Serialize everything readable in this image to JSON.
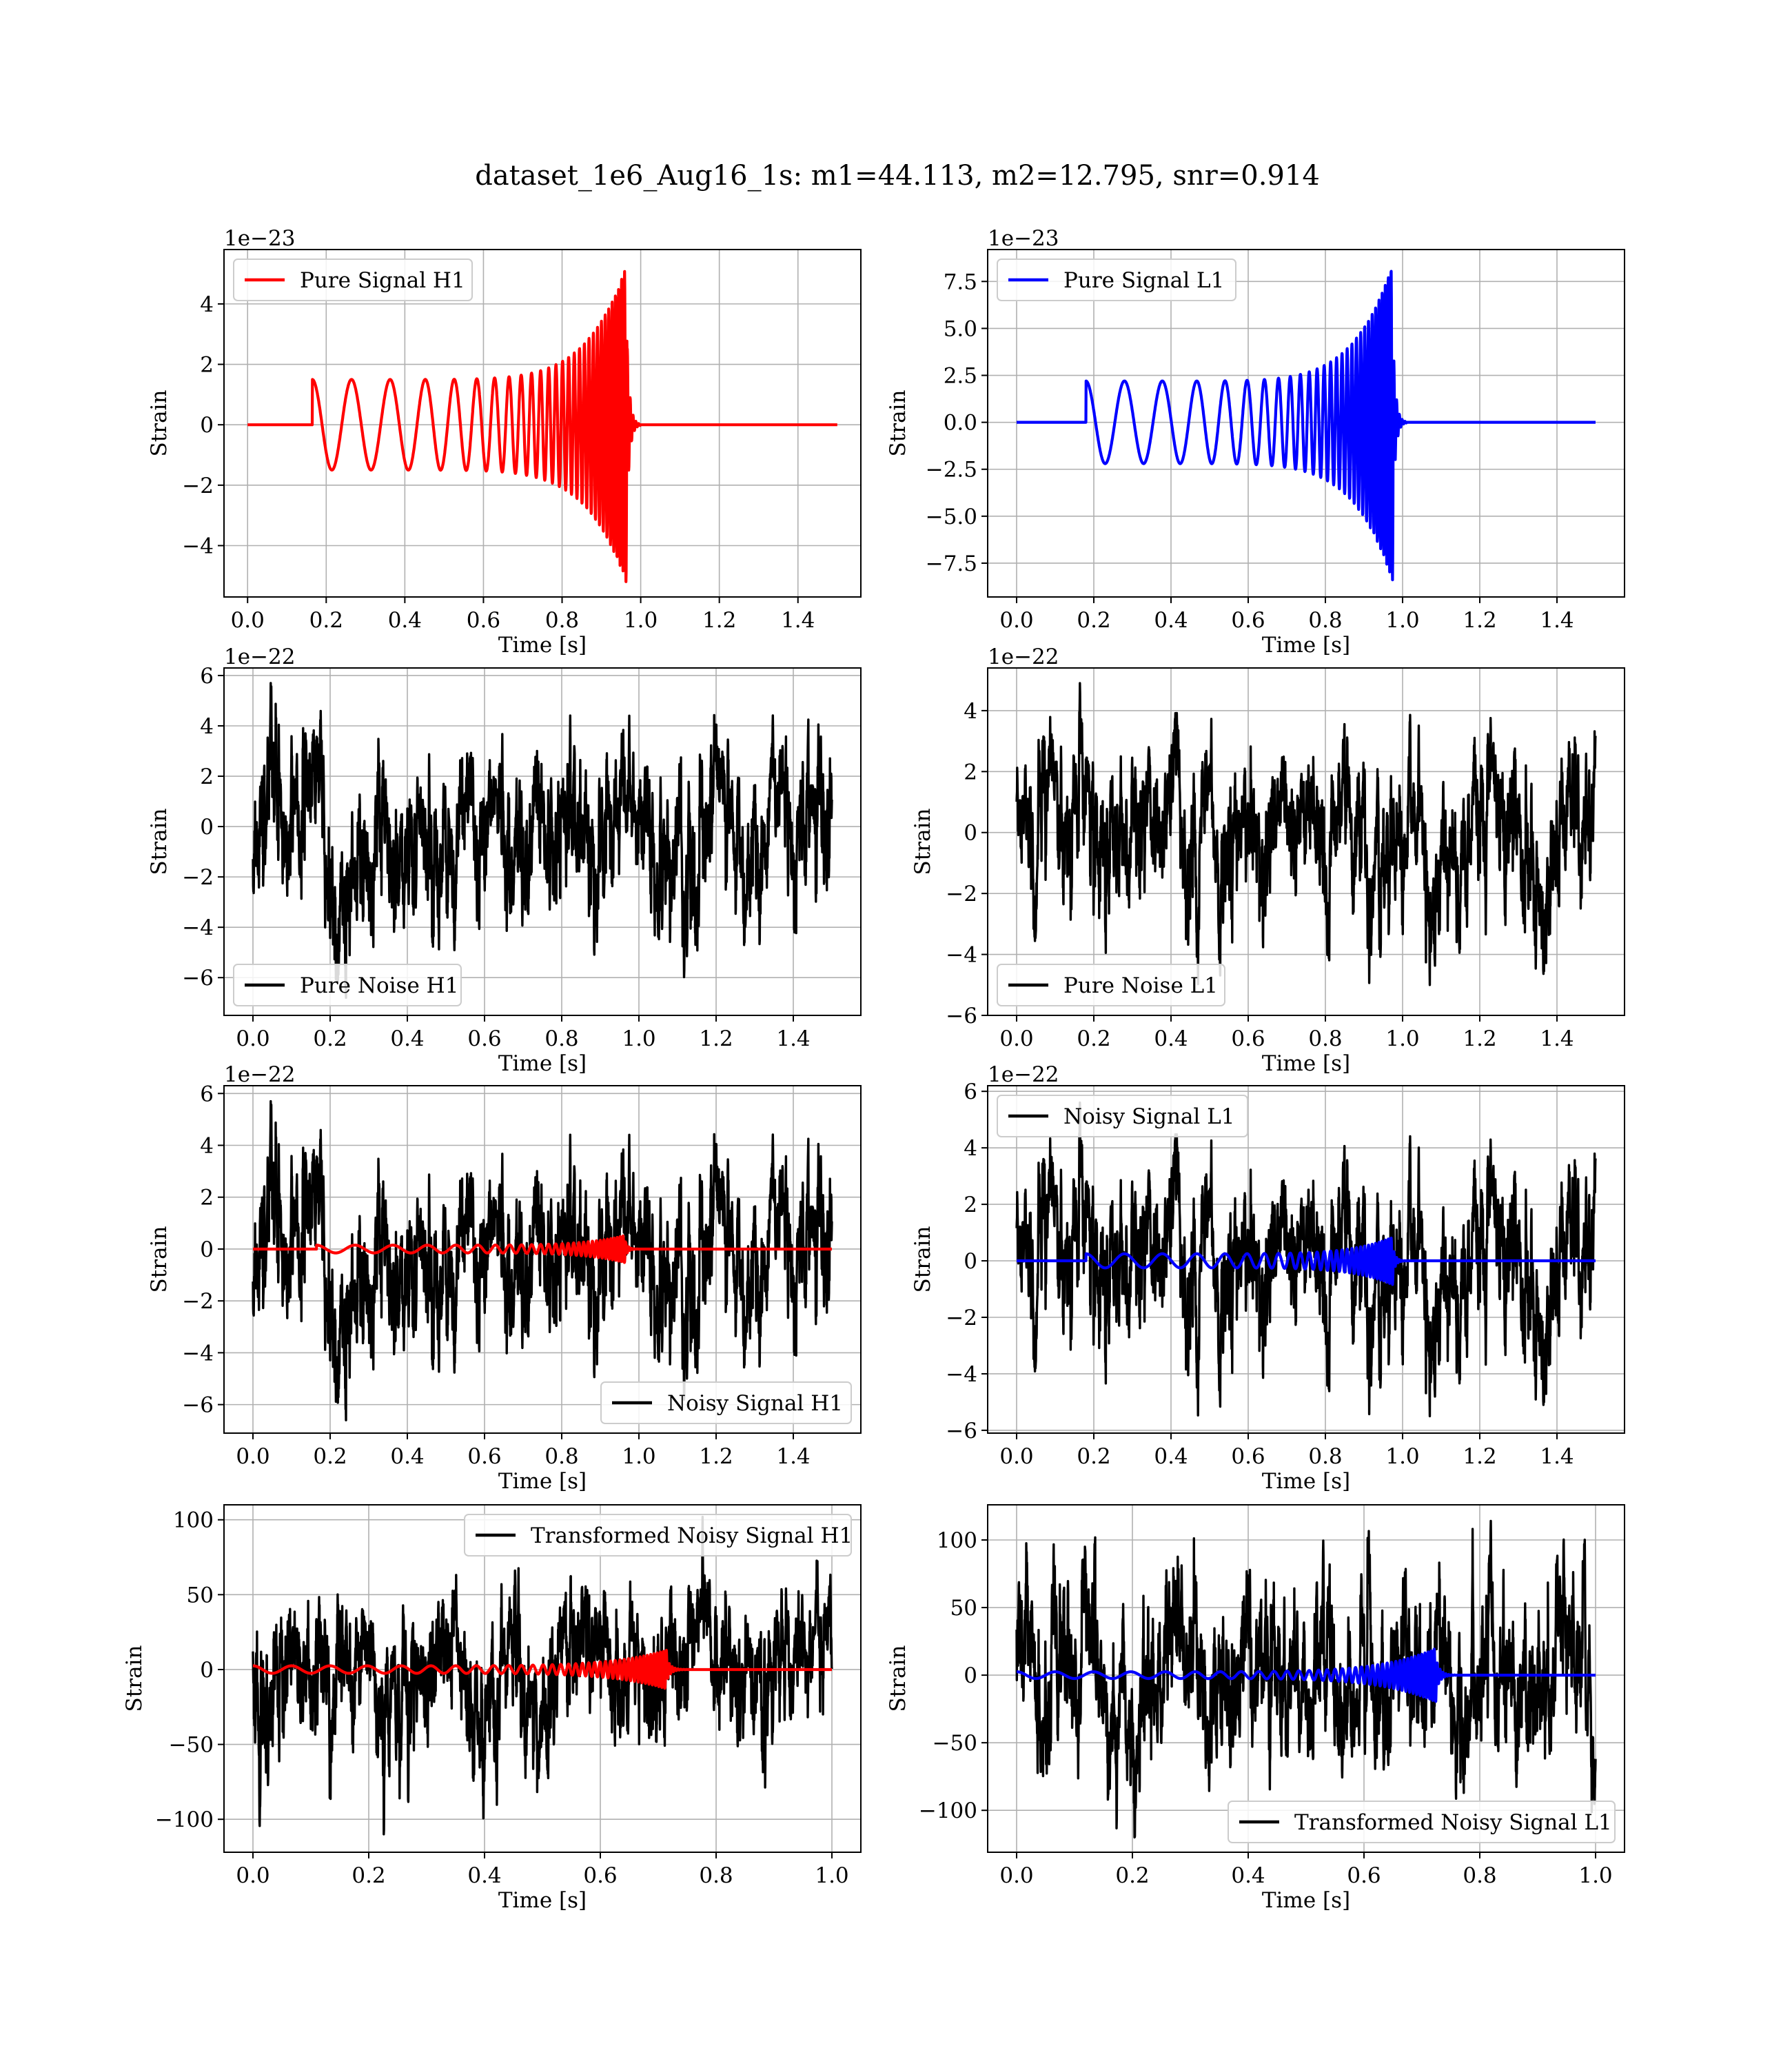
{
  "figure": {
    "title": "dataset_1e6_Aug16_1s: m1=44.113, m2=12.795, snr=0.914"
  },
  "chart_data": [
    {
      "type": "line",
      "panel": "top-left",
      "legend": "Pure Signal H1",
      "legend_loc": "upper-left",
      "series": [
        {
          "name": "Pure Signal H1",
          "color": "#ff0000",
          "kind": "chirp",
          "start": 0.165,
          "merger": 0.965,
          "duration": 1.5,
          "amp0": 1.5,
          "amp_peak": 5.3,
          "f0": 10,
          "f1": 140
        }
      ],
      "xlim": [
        -0.06,
        1.56
      ],
      "ylim": [
        -5.7,
        5.8
      ],
      "xticks": [
        0.0,
        0.2,
        0.4,
        0.6,
        0.8,
        1.0,
        1.2,
        1.4
      ],
      "xtick_labels": [
        "0.0",
        "0.2",
        "0.4",
        "0.6",
        "0.8",
        "1.0",
        "1.2",
        "1.4"
      ],
      "yticks": [
        -4,
        -2,
        0,
        2,
        4
      ],
      "ytick_labels": [
        "−4",
        "−2",
        "0",
        "2",
        "4"
      ],
      "offset_label": "1e−23",
      "xlabel": "Time [s]",
      "ylabel": "Strain",
      "grid": true
    },
    {
      "type": "line",
      "panel": "top-right",
      "legend": "Pure Signal L1",
      "legend_loc": "upper-left",
      "series": [
        {
          "name": "Pure Signal L1",
          "color": "#0000ff",
          "kind": "chirp",
          "start": 0.18,
          "merger": 0.975,
          "duration": 1.5,
          "amp0": 2.2,
          "amp_peak": 8.5,
          "f0": 10,
          "f1": 140
        }
      ],
      "xlim": [
        -0.075,
        1.575
      ],
      "ylim": [
        -9.3,
        9.2
      ],
      "xticks": [
        0.0,
        0.2,
        0.4,
        0.6,
        0.8,
        1.0,
        1.2,
        1.4
      ],
      "xtick_labels": [
        "0.0",
        "0.2",
        "0.4",
        "0.6",
        "0.8",
        "1.0",
        "1.2",
        "1.4"
      ],
      "yticks": [
        -7.5,
        -5.0,
        -2.5,
        0.0,
        2.5,
        5.0,
        7.5
      ],
      "ytick_labels": [
        "−7.5",
        "−5.0",
        "−2.5",
        "0.0",
        "2.5",
        "5.0",
        "7.5"
      ],
      "offset_label": "1e−23",
      "xlabel": "Time [s]",
      "ylabel": "Strain",
      "grid": true
    },
    {
      "type": "line",
      "panel": "second-left",
      "legend": "Pure Noise H1",
      "legend_loc": "lower-left",
      "series": [
        {
          "name": "Pure Noise H1",
          "color": "#000000",
          "kind": "noise",
          "seed": 11,
          "duration": 1.5,
          "amp": 1.3,
          "max": 5.7,
          "min": -6.8
        }
      ],
      "xlim": [
        -0.075,
        1.575
      ],
      "ylim": [
        -7.5,
        6.3
      ],
      "xticks": [
        0.0,
        0.2,
        0.4,
        0.6,
        0.8,
        1.0,
        1.2,
        1.4
      ],
      "xtick_labels": [
        "0.0",
        "0.2",
        "0.4",
        "0.6",
        "0.8",
        "1.0",
        "1.2",
        "1.4"
      ],
      "yticks": [
        -6,
        -4,
        -2,
        0,
        2,
        4,
        6
      ],
      "ytick_labels": [
        "−6",
        "−4",
        "−2",
        "0",
        "2",
        "4",
        "6"
      ],
      "offset_label": "1e−22",
      "xlabel": "Time [s]",
      "ylabel": "Strain",
      "grid": true
    },
    {
      "type": "line",
      "panel": "second-right",
      "legend": "Pure Noise L1",
      "legend_loc": "lower-left",
      "series": [
        {
          "name": "Pure Noise L1",
          "color": "#000000",
          "kind": "noise",
          "seed": 23,
          "duration": 1.5,
          "amp": 1.2,
          "max": 4.9,
          "min": -5.0
        }
      ],
      "xlim": [
        -0.075,
        1.575
      ],
      "ylim": [
        -6.0,
        5.4
      ],
      "xticks": [
        0.0,
        0.2,
        0.4,
        0.6,
        0.8,
        1.0,
        1.2,
        1.4
      ],
      "xtick_labels": [
        "0.0",
        "0.2",
        "0.4",
        "0.6",
        "0.8",
        "1.0",
        "1.2",
        "1.4"
      ],
      "yticks": [
        -6,
        -4,
        -2,
        0,
        2,
        4
      ],
      "ytick_labels": [
        "−6",
        "−4",
        "−2",
        "0",
        "2",
        "4"
      ],
      "offset_label": "1e−22",
      "xlabel": "Time [s]",
      "ylabel": "Strain",
      "grid": true
    },
    {
      "type": "line",
      "panel": "third-left",
      "legend": "Noisy Signal H1",
      "legend_loc": "lower-right",
      "series": [
        {
          "name": "Noisy Signal H1",
          "color": "#000000",
          "kind": "noise",
          "seed": 11,
          "duration": 1.5,
          "amp": 1.3,
          "max": 5.7,
          "min": -6.6
        },
        {
          "color": "#ff0000",
          "kind": "chirp",
          "start": 0.165,
          "merger": 0.965,
          "duration": 1.5,
          "amp0": 0.15,
          "amp_peak": 0.53,
          "f0": 10,
          "f1": 140
        }
      ],
      "xlim": [
        -0.075,
        1.575
      ],
      "ylim": [
        -7.1,
        6.3
      ],
      "xticks": [
        0.0,
        0.2,
        0.4,
        0.6,
        0.8,
        1.0,
        1.2,
        1.4
      ],
      "xtick_labels": [
        "0.0",
        "0.2",
        "0.4",
        "0.6",
        "0.8",
        "1.0",
        "1.2",
        "1.4"
      ],
      "yticks": [
        -6,
        -4,
        -2,
        0,
        2,
        4,
        6
      ],
      "ytick_labels": [
        "−6",
        "−4",
        "−2",
        "0",
        "2",
        "4",
        "6"
      ],
      "offset_label": "1e−22",
      "xlabel": "Time [s]",
      "ylabel": "Strain",
      "grid": true
    },
    {
      "type": "line",
      "panel": "third-right",
      "legend": "Noisy Signal L1",
      "legend_loc": "upper-left",
      "series": [
        {
          "name": "Noisy Signal L1",
          "color": "#000000",
          "kind": "noise",
          "seed": 23,
          "duration": 1.5,
          "amp": 1.2,
          "max": 5.6,
          "min": -5.5
        },
        {
          "color": "#0000ff",
          "kind": "chirp",
          "start": 0.18,
          "merger": 0.975,
          "duration": 1.5,
          "amp0": 0.25,
          "amp_peak": 0.85,
          "f0": 10,
          "f1": 140
        }
      ],
      "xlim": [
        -0.075,
        1.575
      ],
      "ylim": [
        -6.1,
        6.2
      ],
      "xticks": [
        0.0,
        0.2,
        0.4,
        0.6,
        0.8,
        1.0,
        1.2,
        1.4
      ],
      "xtick_labels": [
        "0.0",
        "0.2",
        "0.4",
        "0.6",
        "0.8",
        "1.0",
        "1.2",
        "1.4"
      ],
      "yticks": [
        -6,
        -4,
        -2,
        0,
        2,
        4,
        6
      ],
      "ytick_labels": [
        "−6",
        "−4",
        "−2",
        "0",
        "2",
        "4",
        "6"
      ],
      "offset_label": "1e−22",
      "xlabel": "Time [s]",
      "ylabel": "Strain",
      "grid": true
    },
    {
      "type": "line",
      "panel": "bottom-left",
      "legend": "Transformed Noisy Signal H1",
      "legend_loc": "upper-right",
      "series": [
        {
          "name": "Transformed Noisy Signal H1",
          "color": "#000000",
          "kind": "noise",
          "seed": 37,
          "duration": 1.0,
          "amp": 25,
          "max": 102,
          "min": -110
        },
        {
          "color": "#ff0000",
          "kind": "chirp",
          "start": 0.0,
          "merger": 0.715,
          "duration": 1.0,
          "amp0": 2.5,
          "amp_peak": 13,
          "f0": 15,
          "f1": 200
        }
      ],
      "xlim": [
        -0.05,
        1.05
      ],
      "ylim": [
        -122,
        110
      ],
      "xticks": [
        0.0,
        0.2,
        0.4,
        0.6,
        0.8,
        1.0
      ],
      "xtick_labels": [
        "0.0",
        "0.2",
        "0.4",
        "0.6",
        "0.8",
        "1.0"
      ],
      "yticks": [
        -100,
        -50,
        0,
        50,
        100
      ],
      "ytick_labels": [
        "−100",
        "−50",
        "0",
        "50",
        "100"
      ],
      "offset_label": "",
      "xlabel": "Time [s]",
      "ylabel": "Strain",
      "grid": true
    },
    {
      "type": "line",
      "panel": "bottom-right",
      "legend": "Transformed Noisy Signal L1",
      "legend_loc": "lower-right",
      "series": [
        {
          "name": "Transformed Noisy Signal L1",
          "color": "#000000",
          "kind": "noise",
          "seed": 53,
          "duration": 1.0,
          "amp": 25,
          "max": 114,
          "min": -120
        },
        {
          "color": "#0000ff",
          "kind": "chirp",
          "start": 0.0,
          "merger": 0.725,
          "duration": 1.0,
          "amp0": 2.5,
          "amp_peak": 20,
          "f0": 15,
          "f1": 200
        }
      ],
      "xlim": [
        -0.05,
        1.05
      ],
      "ylim": [
        -131,
        126
      ],
      "xticks": [
        0.0,
        0.2,
        0.4,
        0.6,
        0.8,
        1.0
      ],
      "xtick_labels": [
        "0.0",
        "0.2",
        "0.4",
        "0.6",
        "0.8",
        "1.0"
      ],
      "yticks": [
        -100,
        -50,
        0,
        50,
        100
      ],
      "ytick_labels": [
        "−100",
        "−50",
        "0",
        "50",
        "100"
      ],
      "offset_label": "",
      "xlabel": "Time [s]",
      "ylabel": "Strain",
      "grid": true
    }
  ]
}
